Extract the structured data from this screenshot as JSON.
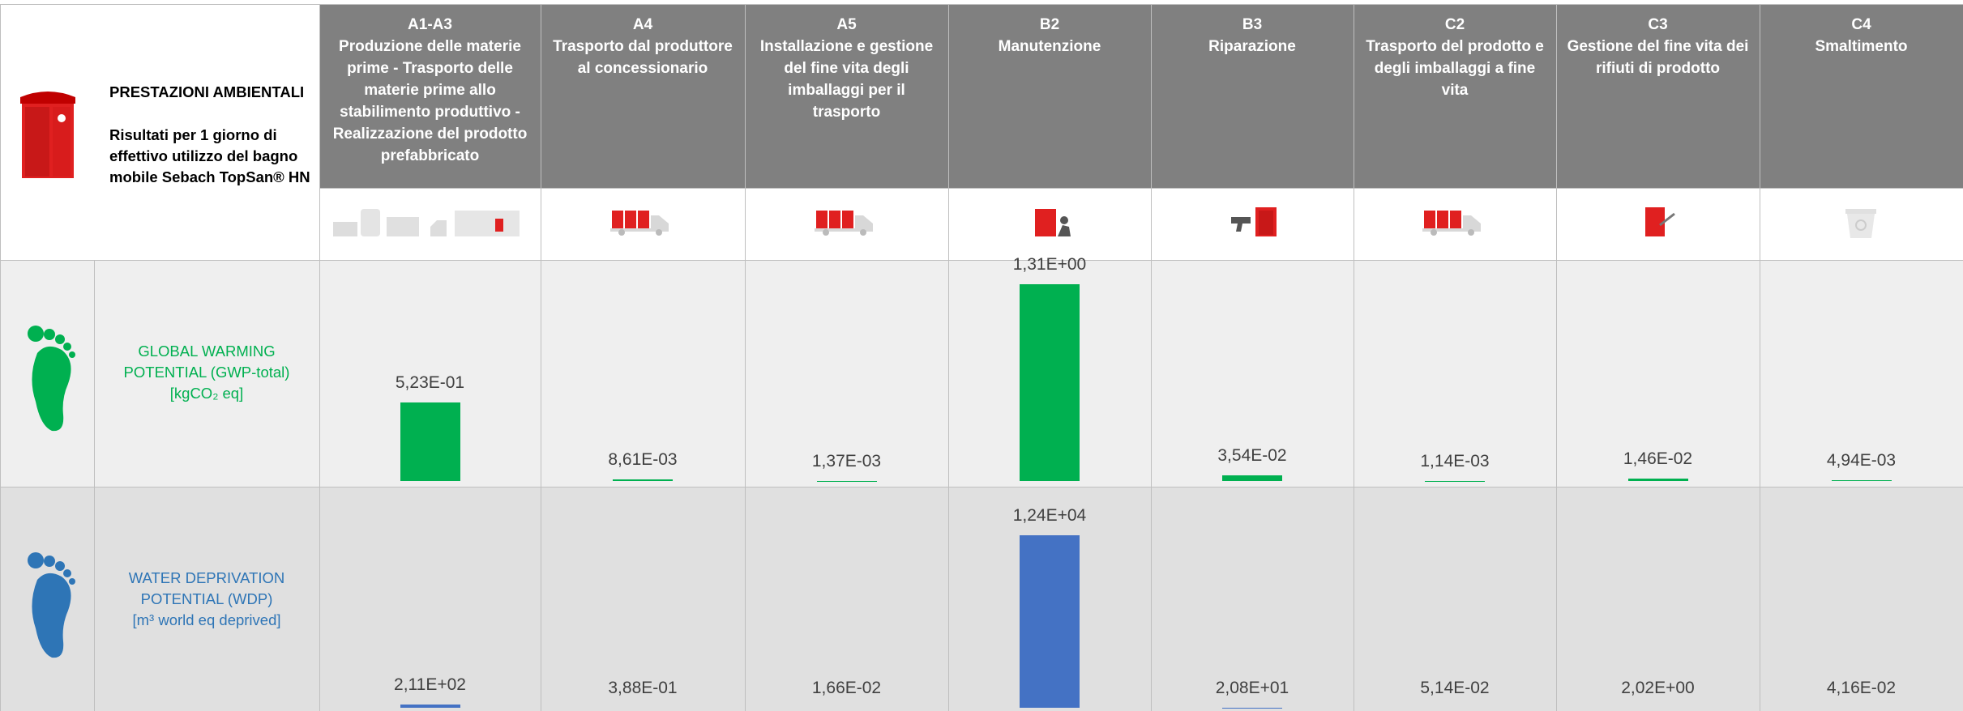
{
  "header": {
    "title": "PRESTAZIONI AMBIENTALI",
    "subtitle": "Risultati per 1 giorno di effettivo utilizzo del bagno mobile Sebach TopSan® HN"
  },
  "stages": [
    {
      "code": "A1-A3",
      "name": "Produzione delle materie prime - Trasporto delle materie prime allo stabilimento produttivo - Realizzazione del prodotto prefabbricato"
    },
    {
      "code": "A4",
      "name": "Trasporto dal produttore al concessionario"
    },
    {
      "code": "A5",
      "name": "Installazione e gestione del fine vita degli imballaggi per il trasporto"
    },
    {
      "code": "B2",
      "name": "Manutenzione"
    },
    {
      "code": "B3",
      "name": "Riparazione"
    },
    {
      "code": "C2",
      "name": "Trasporto del prodotto e degli imballaggi a fine vita"
    },
    {
      "code": "C3",
      "name": "Gestione del fine vita dei rifiuti di prodotto"
    },
    {
      "code": "C4",
      "name": "Smaltimento"
    }
  ],
  "indicators": [
    {
      "name": "GLOBAL WARMING POTENTIAL (GWP-total)",
      "unit": "[kgCO₂ eq]",
      "color": "#00b050",
      "label_color": "#00b050",
      "values": [
        0.523,
        0.00861,
        0.00137,
        1.31,
        0.0354,
        0.00114,
        0.0146,
        0.00494
      ],
      "value_labels": [
        "5,23E-01",
        "8,61E-03",
        "1,37E-03",
        "1,31E+00",
        "3,54E-02",
        "1,14E-03",
        "1,46E-02",
        "4,94E-03"
      ]
    },
    {
      "name": "WATER DEPRIVATION POTENTIAL (WDP)",
      "unit": "[m³ world eq deprived]",
      "color": "#4472c4",
      "label_color": "#2e75b6",
      "values": [
        211,
        0.388,
        0.0166,
        12400,
        20.8,
        0.0514,
        2.02,
        0.0416
      ],
      "value_labels": [
        "2,11E+02",
        "3,88E-01",
        "1,66E-02",
        "1,24E+04",
        "2,08E+01",
        "5,14E-02",
        "2,02E+00",
        "4,16E-02"
      ]
    }
  ]
}
